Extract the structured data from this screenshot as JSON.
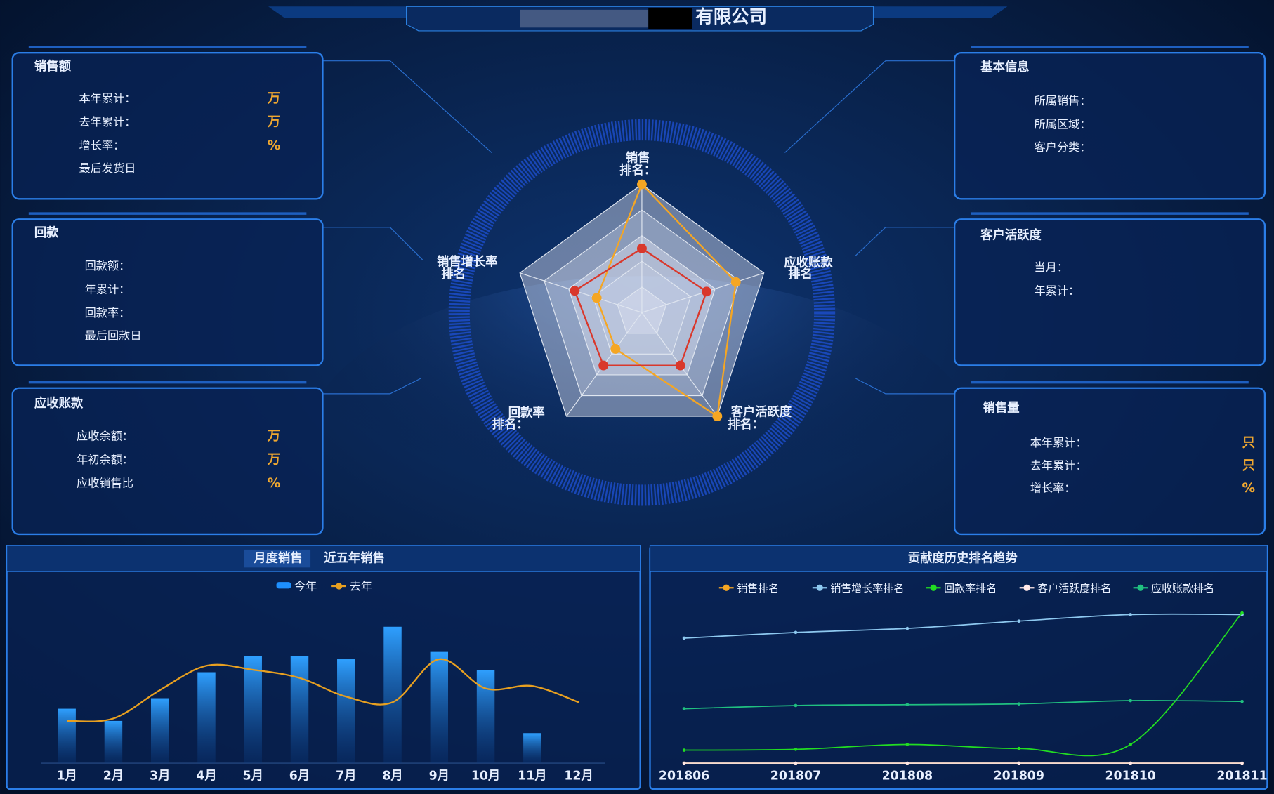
{
  "header": {
    "title": "有限公司"
  },
  "panels": [
    {
      "title": "销售额",
      "rows": [
        {
          "label": "本年累计：",
          "unit": "万"
        },
        {
          "label": "去年累计：",
          "unit": "万"
        },
        {
          "label": "增长率：",
          "unit": "%"
        },
        {
          "label": "最后发货日"
        }
      ]
    },
    {
      "title": "回款",
      "rows": [
        {
          "label": "回款额："
        },
        {
          "label": "年累计："
        },
        {
          "label": "回款率："
        },
        {
          "label": "最后回款日"
        }
      ]
    },
    {
      "title": "应收账款",
      "rows": [
        {
          "label": "应收余额：",
          "unit": "万"
        },
        {
          "label": "年初余额：",
          "unit": "万"
        },
        {
          "label": "应收销售比",
          "unit": "%"
        }
      ]
    },
    {
      "title": "基本信息",
      "rows": [
        {
          "label": "所属销售："
        },
        {
          "label": "所属区域："
        },
        {
          "label": "客户分类："
        }
      ]
    },
    {
      "title": "客户活跃度",
      "rows": [
        {
          "label": "当月："
        },
        {
          "label": "年累计："
        }
      ]
    },
    {
      "title": "销售量",
      "rows": [
        {
          "label": "本年累计：",
          "unit": "只"
        },
        {
          "label": "去年累计：",
          "unit": "只"
        },
        {
          "label": "增长率：",
          "unit": "%"
        }
      ]
    }
  ],
  "radar": {
    "type": "radar",
    "axes": [
      {
        "name": "销售",
        "rank_label": "排名："
      },
      {
        "name": "应收账款",
        "rank_label": "排名"
      },
      {
        "name": "客户活跃度",
        "rank_label": "排名："
      },
      {
        "name": "回款率",
        "rank_label": "排名："
      },
      {
        "name": "销售增长率",
        "rank_label": "排名"
      }
    ],
    "rlim": [
      0,
      1
    ],
    "series": [
      {
        "color": "#f5a623",
        "values": [
          1.0,
          0.77,
          1.0,
          0.35,
          0.37
        ]
      },
      {
        "color": "#d9382c",
        "values": [
          0.5,
          0.53,
          0.51,
          0.51,
          0.55
        ]
      }
    ]
  },
  "monthly_chart": {
    "type": "combo",
    "tabs": [
      "月度销售",
      "近五年销售"
    ],
    "categories": [
      "1月",
      "2月",
      "3月",
      "4月",
      "5月",
      "6月",
      "7月",
      "8月",
      "9月",
      "10月",
      "11月",
      "12月"
    ],
    "series": [
      {
        "name": "今年",
        "type": "bar",
        "color": "#1e90ff",
        "values": [
          67,
          52,
          80,
          112,
          132,
          132,
          128,
          168,
          137,
          115,
          37,
          null
        ]
      },
      {
        "name": "去年",
        "type": "line",
        "color": "#e8a020",
        "values": [
          52,
          55,
          90,
          120,
          115,
          105,
          82,
          75,
          128,
          92,
          95,
          75
        ]
      }
    ],
    "ylim": [
      0,
      180
    ]
  },
  "rank_chart": {
    "type": "line",
    "title": "贡献度历史排名趋势",
    "x": [
      "201806",
      "201807",
      "201808",
      "201809",
      "201810",
      "201811"
    ],
    "ylim": [
      0,
      190
    ],
    "series": [
      {
        "name": "销售排名",
        "color": "#f5a623",
        "values": [
          0,
          0,
          0,
          0,
          0,
          0
        ]
      },
      {
        "name": "销售增长率排名",
        "color": "#8ec9f0",
        "values": [
          154,
          161,
          166,
          175,
          183,
          183
        ]
      },
      {
        "name": "回款率排名",
        "color": "#22dd22",
        "values": [
          16,
          17,
          23,
          18,
          23,
          185
        ]
      },
      {
        "name": "客户活跃度排名",
        "color": "#ffe8e8",
        "values": [
          0,
          0,
          0,
          0,
          0,
          0
        ]
      },
      {
        "name": "应收账款排名",
        "color": "#20c080",
        "values": [
          67,
          71,
          72,
          73,
          77,
          76
        ]
      }
    ]
  }
}
